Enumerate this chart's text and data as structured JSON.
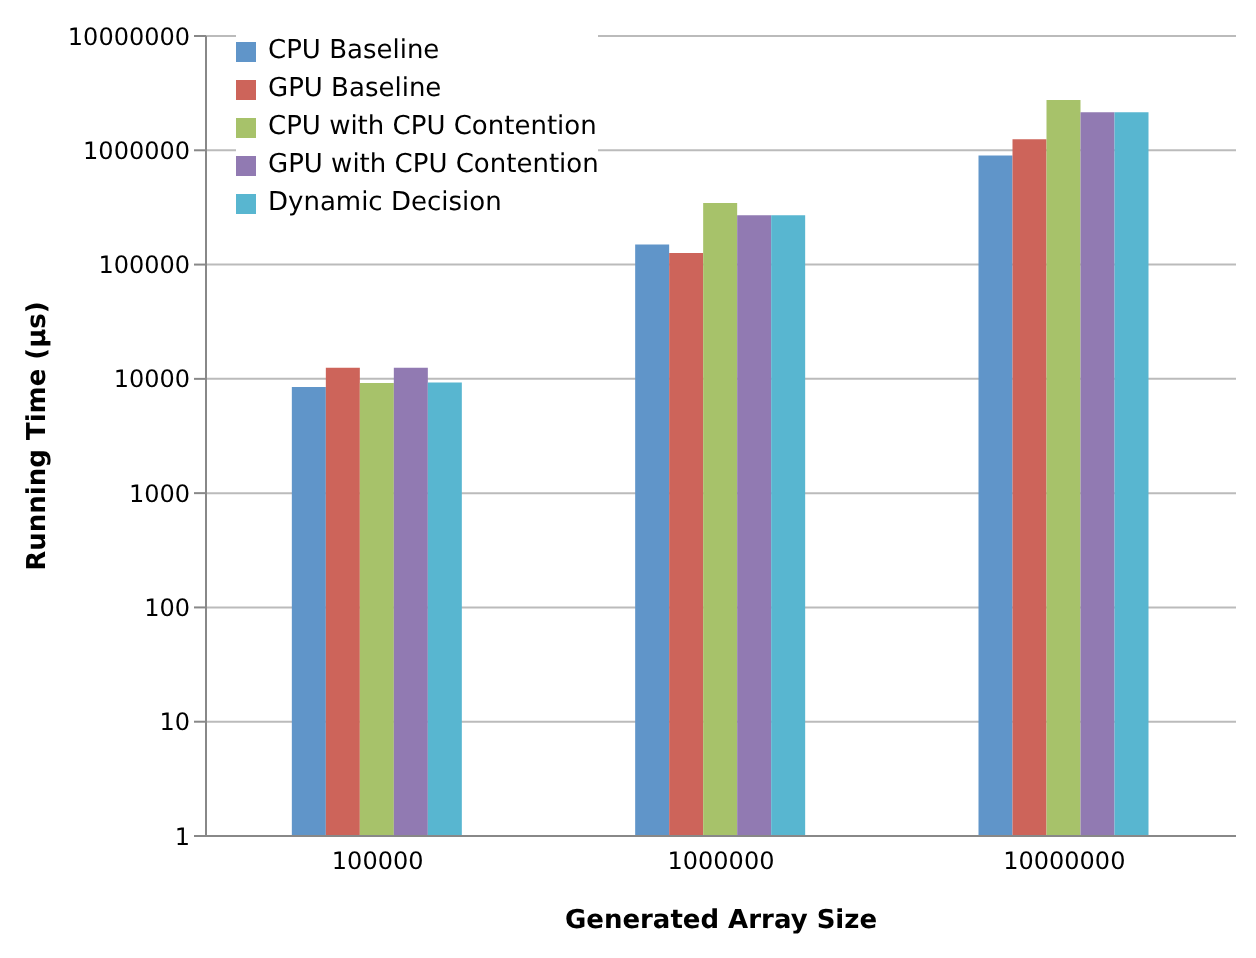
{
  "chart_data": {
    "type": "bar",
    "xlabel": "Generated Array Size",
    "ylabel": "Running Time (µs)",
    "categories": [
      "100000",
      "1000000",
      "10000000"
    ],
    "series": [
      {
        "name": "CPU Baseline",
        "color": "#6095c9",
        "values": [
          8500,
          150000,
          900000
        ]
      },
      {
        "name": "GPU Baseline",
        "color": "#cd645a",
        "values": [
          12500,
          126000,
          1250000
        ]
      },
      {
        "name": "CPU with CPU Contention",
        "color": "#a7c26a",
        "values": [
          9200,
          345000,
          2750000
        ]
      },
      {
        "name": "GPU with CPU Contention",
        "color": "#917ab2",
        "values": [
          12500,
          270000,
          2150000
        ]
      },
      {
        "name": "Dynamic Decision",
        "color": "#58b6d0",
        "values": [
          9300,
          270000,
          2150000
        ]
      }
    ],
    "log": "y",
    "ylim": [
      1,
      10000000
    ],
    "yticks": [
      1,
      10,
      100,
      1000,
      10000,
      100000,
      1000000,
      10000000
    ],
    "grid": "y",
    "legend": "top left"
  }
}
